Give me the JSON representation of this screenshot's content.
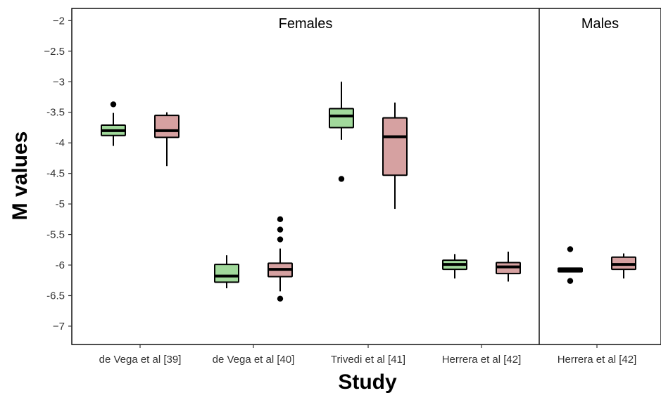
{
  "chart_data": {
    "type": "boxplot",
    "xlabel": "Study",
    "ylabel": "M values",
    "ylim": [
      -7.3,
      -1.8
    ],
    "yticks": [
      -2,
      -2.5,
      -3,
      -3.5,
      -4,
      -4.5,
      -5,
      -5.5,
      -6,
      -6.5,
      -7
    ],
    "ytick_labels": [
      "−2",
      "−2.5",
      "−3",
      "-3.5",
      "-4",
      "-4.5",
      "-5",
      "-5.5",
      "-6",
      "-6.5",
      "−7"
    ],
    "grid": false,
    "series_colors": [
      "#a1d99b",
      "#d6a1a1"
    ],
    "facets": [
      {
        "label": "Females",
        "categories": [
          "de Vega et al [39]",
          "de Vega et al [40]",
          "Trivedi et al [41]",
          "Herrera et al [42]"
        ],
        "boxes": [
          [
            {
              "q1": -3.88,
              "median": -3.8,
              "q3": -3.71,
              "whisker_low": -4.05,
              "whisker_high": -3.51,
              "outliers": [
                -3.37
              ]
            },
            {
              "q1": -3.91,
              "median": -3.8,
              "q3": -3.55,
              "whisker_low": -4.38,
              "whisker_high": -3.5,
              "outliers": []
            }
          ],
          [
            {
              "q1": -6.28,
              "median": -6.18,
              "q3": -5.99,
              "whisker_low": -6.38,
              "whisker_high": -5.84,
              "outliers": []
            },
            {
              "q1": -6.19,
              "median": -6.07,
              "q3": -5.97,
              "whisker_low": -6.43,
              "whisker_high": -5.73,
              "outliers": [
                -5.25,
                -5.42,
                -5.58,
                -6.55
              ]
            }
          ],
          [
            {
              "q1": -3.75,
              "median": -3.56,
              "q3": -3.44,
              "whisker_low": -3.95,
              "whisker_high": -3.0,
              "outliers": [
                -4.59
              ]
            },
            {
              "q1": -4.53,
              "median": -3.9,
              "q3": -3.59,
              "whisker_low": -5.08,
              "whisker_high": -3.34,
              "outliers": []
            }
          ],
          [
            {
              "q1": -6.07,
              "median": -5.99,
              "q3": -5.92,
              "whisker_low": -6.22,
              "whisker_high": -5.82,
              "outliers": []
            },
            {
              "q1": -6.14,
              "median": -6.03,
              "q3": -5.96,
              "whisker_low": -6.27,
              "whisker_high": -5.78,
              "outliers": []
            }
          ]
        ]
      },
      {
        "label": "Males",
        "categories": [
          "Herrera et al [42]"
        ],
        "boxes": [
          [
            {
              "q1": -6.11,
              "median": -6.08,
              "q3": -6.05,
              "whisker_low": -6.12,
              "whisker_high": -6.04,
              "outliers": [
                -5.74,
                -6.26
              ]
            },
            {
              "q1": -6.07,
              "median": -5.99,
              "q3": -5.87,
              "whisker_low": -6.22,
              "whisker_high": -5.81,
              "outliers": []
            }
          ]
        ]
      }
    ]
  }
}
